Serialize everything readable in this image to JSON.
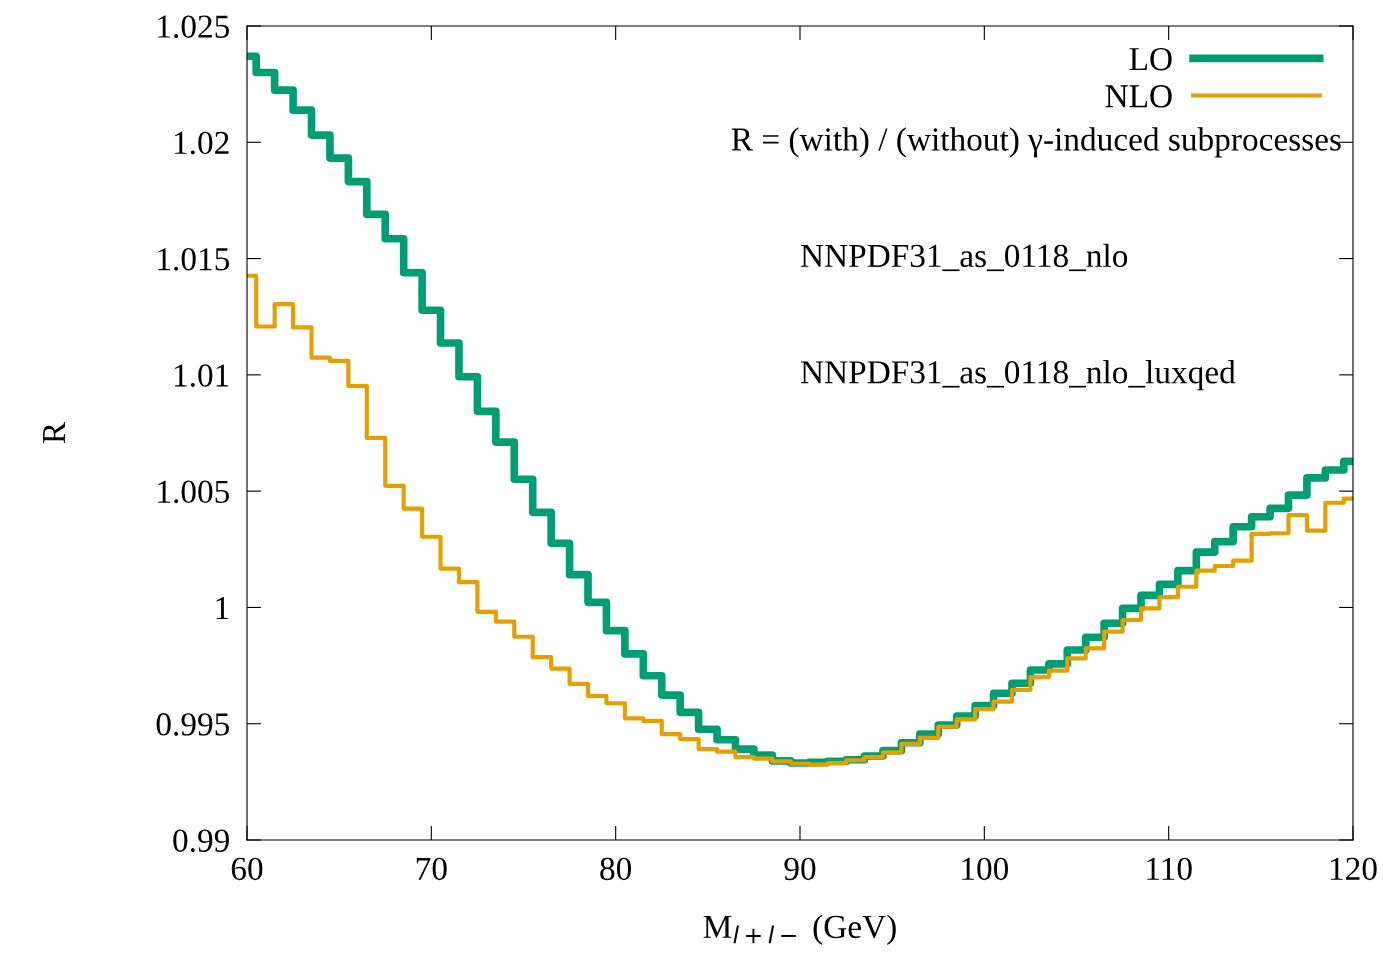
{
  "chart_data": {
    "type": "step",
    "xlabel": "M$_{l+l−}$ (GeV)",
    "ylabel": "R",
    "x": [
      60,
      61,
      62,
      63,
      64,
      65,
      66,
      67,
      68,
      69,
      70,
      71,
      72,
      73,
      74,
      75,
      76,
      77,
      78,
      79,
      80,
      81,
      82,
      83,
      84,
      85,
      86,
      87,
      88,
      89,
      90,
      91,
      92,
      93,
      94,
      95,
      96,
      97,
      98,
      99,
      100,
      101,
      102,
      103,
      104,
      105,
      106,
      107,
      108,
      109,
      110,
      111,
      112,
      113,
      114,
      115,
      116,
      117,
      118,
      119,
      120
    ],
    "series": [
      {
        "name": "LO",
        "color": "#009e73",
        "values": [
          1.0237,
          1.023,
          1.02224,
          1.02138,
          1.02031,
          1.01932,
          1.01831,
          1.0169,
          1.01585,
          1.01439,
          1.01278,
          1.01137,
          1.00992,
          1.00843,
          1.00711,
          1.00551,
          1.00409,
          1.00276,
          1.00141,
          1.00022,
          0.999,
          0.998,
          0.99706,
          0.99623,
          0.99549,
          0.99476,
          0.99431,
          0.99391,
          0.99365,
          0.9934,
          0.99331,
          0.99334,
          0.99338,
          0.99345,
          0.99361,
          0.99384,
          0.99418,
          0.99456,
          0.99494,
          0.99533,
          0.99578,
          0.99631,
          0.99674,
          0.99731,
          0.99757,
          0.99817,
          0.99872,
          0.99932,
          0.99996,
          1.00052,
          1.00099,
          1.00158,
          1.00238,
          1.00283,
          1.00347,
          1.0039,
          1.00426,
          1.00483,
          1.00557,
          1.00591,
          1.00628
        ]
      },
      {
        "name": "NLO",
        "color": "#e69f00",
        "values": [
          1.01426,
          1.01208,
          1.01304,
          1.01204,
          1.01074,
          1.0106,
          1.00952,
          1.00729,
          1.00523,
          1.00425,
          1.00304,
          1.00167,
          1.00109,
          0.99981,
          0.99939,
          0.99874,
          0.99786,
          0.99737,
          0.99671,
          0.99619,
          0.99588,
          0.99523,
          0.99512,
          0.99455,
          0.99434,
          0.99391,
          0.9938,
          0.99356,
          0.9935,
          0.99338,
          0.99328,
          0.99324,
          0.99331,
          0.99343,
          0.99357,
          0.99377,
          0.99413,
          0.99439,
          0.99487,
          0.99519,
          0.99563,
          0.99595,
          0.99645,
          0.997,
          0.99728,
          0.99781,
          0.99824,
          0.99896,
          0.99946,
          0.99996,
          1.00044,
          1.00089,
          1.00158,
          1.00178,
          1.00201,
          1.00316,
          1.00319,
          1.00397,
          1.0033,
          1.0045,
          1.00468
        ]
      }
    ],
    "xlim": [
      60,
      120
    ],
    "xticks": [
      60,
      70,
      80,
      90,
      100,
      110,
      120
    ],
    "ylim": [
      0.99,
      1.025
    ],
    "yticks": [
      0.99,
      0.995,
      1,
      1.005,
      1.01,
      1.015,
      1.02,
      1.025
    ],
    "legend": "top right",
    "annotations": [
      "R = (with) / (without) γ-induced subprocesses",
      "NNPDF31_as_0118_nlo",
      "NNPDF31_as_0118_nlo_luxqed"
    ]
  }
}
